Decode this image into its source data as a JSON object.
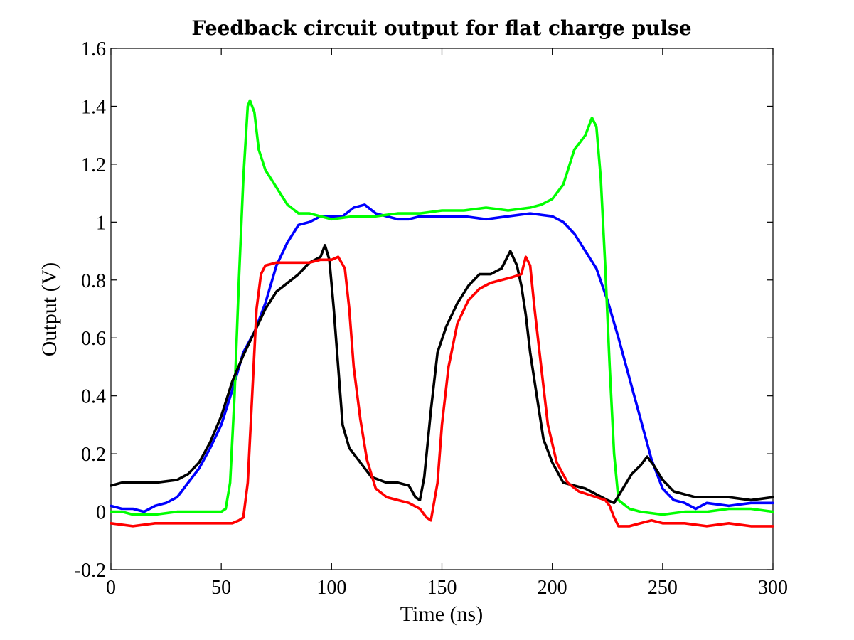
{
  "chart_data": {
    "type": "line",
    "title": "Feedback circuit output for flat charge pulse",
    "xlabel": "Time (ns)",
    "ylabel": "Output (V)",
    "xlim": [
      0,
      300
    ],
    "ylim": [
      -0.2,
      1.6
    ],
    "xticks": [
      0,
      50,
      100,
      150,
      200,
      250,
      300
    ],
    "yticks": [
      -0.2,
      0,
      0.2,
      0.4,
      0.6,
      0.8,
      1,
      1.2,
      1.4,
      1.6
    ],
    "xtick_labels": [
      "0",
      "50",
      "100",
      "150",
      "200",
      "250",
      "300"
    ],
    "ytick_labels": [
      "-0.2",
      "0",
      "0.2",
      "0.4",
      "0.6",
      "0.8",
      "1",
      "1.2",
      "1.4",
      "1.6"
    ],
    "grid": false,
    "legend": "none",
    "series": [
      {
        "color": "#0000ff",
        "points": [
          [
            0,
            0.02
          ],
          [
            5,
            0.01
          ],
          [
            10,
            0.01
          ],
          [
            15,
            0.0
          ],
          [
            20,
            0.02
          ],
          [
            25,
            0.03
          ],
          [
            30,
            0.05
          ],
          [
            35,
            0.1
          ],
          [
            40,
            0.15
          ],
          [
            45,
            0.22
          ],
          [
            50,
            0.3
          ],
          [
            55,
            0.42
          ],
          [
            60,
            0.55
          ],
          [
            65,
            0.62
          ],
          [
            70,
            0.72
          ],
          [
            75,
            0.85
          ],
          [
            80,
            0.93
          ],
          [
            85,
            0.99
          ],
          [
            90,
            1.0
          ],
          [
            95,
            1.02
          ],
          [
            100,
            1.02
          ],
          [
            105,
            1.02
          ],
          [
            110,
            1.05
          ],
          [
            115,
            1.06
          ],
          [
            120,
            1.03
          ],
          [
            125,
            1.02
          ],
          [
            130,
            1.01
          ],
          [
            135,
            1.01
          ],
          [
            140,
            1.02
          ],
          [
            150,
            1.02
          ],
          [
            160,
            1.02
          ],
          [
            170,
            1.01
          ],
          [
            180,
            1.02
          ],
          [
            190,
            1.03
          ],
          [
            200,
            1.02
          ],
          [
            205,
            1.0
          ],
          [
            210,
            0.96
          ],
          [
            215,
            0.9
          ],
          [
            220,
            0.84
          ],
          [
            225,
            0.73
          ],
          [
            230,
            0.6
          ],
          [
            235,
            0.46
          ],
          [
            240,
            0.32
          ],
          [
            245,
            0.18
          ],
          [
            250,
            0.08
          ],
          [
            255,
            0.04
          ],
          [
            260,
            0.03
          ],
          [
            265,
            0.01
          ],
          [
            270,
            0.03
          ],
          [
            280,
            0.02
          ],
          [
            290,
            0.03
          ],
          [
            300,
            0.03
          ]
        ]
      },
      {
        "color": "#00ff00",
        "points": [
          [
            0,
            0.0
          ],
          [
            5,
            0.0
          ],
          [
            10,
            -0.01
          ],
          [
            20,
            -0.01
          ],
          [
            30,
            0.0
          ],
          [
            40,
            0.0
          ],
          [
            50,
            0.0
          ],
          [
            52,
            0.01
          ],
          [
            54,
            0.1
          ],
          [
            56,
            0.4
          ],
          [
            58,
            0.8
          ],
          [
            60,
            1.15
          ],
          [
            62,
            1.4
          ],
          [
            63,
            1.42
          ],
          [
            65,
            1.38
          ],
          [
            67,
            1.25
          ],
          [
            70,
            1.18
          ],
          [
            75,
            1.12
          ],
          [
            80,
            1.06
          ],
          [
            85,
            1.03
          ],
          [
            90,
            1.03
          ],
          [
            95,
            1.02
          ],
          [
            100,
            1.01
          ],
          [
            110,
            1.02
          ],
          [
            120,
            1.02
          ],
          [
            130,
            1.03
          ],
          [
            140,
            1.03
          ],
          [
            150,
            1.04
          ],
          [
            160,
            1.04
          ],
          [
            170,
            1.05
          ],
          [
            180,
            1.04
          ],
          [
            190,
            1.05
          ],
          [
            195,
            1.06
          ],
          [
            200,
            1.08
          ],
          [
            205,
            1.13
          ],
          [
            210,
            1.25
          ],
          [
            215,
            1.3
          ],
          [
            218,
            1.36
          ],
          [
            220,
            1.33
          ],
          [
            222,
            1.15
          ],
          [
            224,
            0.85
          ],
          [
            226,
            0.5
          ],
          [
            228,
            0.2
          ],
          [
            230,
            0.04
          ],
          [
            235,
            0.01
          ],
          [
            240,
            0.0
          ],
          [
            250,
            -0.01
          ],
          [
            260,
            0.0
          ],
          [
            270,
            0.0
          ],
          [
            280,
            0.01
          ],
          [
            290,
            0.01
          ],
          [
            300,
            0.0
          ]
        ]
      },
      {
        "color": "#000000",
        "points": [
          [
            0,
            0.09
          ],
          [
            5,
            0.1
          ],
          [
            10,
            0.1
          ],
          [
            20,
            0.1
          ],
          [
            30,
            0.11
          ],
          [
            35,
            0.13
          ],
          [
            40,
            0.17
          ],
          [
            45,
            0.24
          ],
          [
            50,
            0.33
          ],
          [
            55,
            0.45
          ],
          [
            60,
            0.54
          ],
          [
            65,
            0.62
          ],
          [
            70,
            0.7
          ],
          [
            75,
            0.76
          ],
          [
            80,
            0.79
          ],
          [
            85,
            0.82
          ],
          [
            90,
            0.86
          ],
          [
            95,
            0.88
          ],
          [
            97,
            0.92
          ],
          [
            99,
            0.87
          ],
          [
            101,
            0.7
          ],
          [
            103,
            0.5
          ],
          [
            105,
            0.3
          ],
          [
            108,
            0.22
          ],
          [
            112,
            0.18
          ],
          [
            118,
            0.12
          ],
          [
            125,
            0.1
          ],
          [
            130,
            0.1
          ],
          [
            135,
            0.09
          ],
          [
            138,
            0.05
          ],
          [
            140,
            0.04
          ],
          [
            142,
            0.12
          ],
          [
            145,
            0.35
          ],
          [
            148,
            0.55
          ],
          [
            152,
            0.64
          ],
          [
            157,
            0.72
          ],
          [
            162,
            0.78
          ],
          [
            167,
            0.82
          ],
          [
            172,
            0.82
          ],
          [
            177,
            0.84
          ],
          [
            181,
            0.9
          ],
          [
            184,
            0.85
          ],
          [
            186,
            0.78
          ],
          [
            188,
            0.68
          ],
          [
            190,
            0.55
          ],
          [
            193,
            0.4
          ],
          [
            196,
            0.25
          ],
          [
            200,
            0.17
          ],
          [
            205,
            0.1
          ],
          [
            210,
            0.09
          ],
          [
            215,
            0.08
          ],
          [
            220,
            0.06
          ],
          [
            225,
            0.04
          ],
          [
            228,
            0.03
          ],
          [
            232,
            0.08
          ],
          [
            236,
            0.13
          ],
          [
            240,
            0.16
          ],
          [
            243,
            0.19
          ],
          [
            246,
            0.16
          ],
          [
            250,
            0.11
          ],
          [
            255,
            0.07
          ],
          [
            260,
            0.06
          ],
          [
            265,
            0.05
          ],
          [
            270,
            0.05
          ],
          [
            280,
            0.05
          ],
          [
            290,
            0.04
          ],
          [
            300,
            0.05
          ]
        ]
      },
      {
        "color": "#ff0000",
        "points": [
          [
            0,
            -0.04
          ],
          [
            10,
            -0.05
          ],
          [
            20,
            -0.04
          ],
          [
            30,
            -0.04
          ],
          [
            40,
            -0.04
          ],
          [
            50,
            -0.04
          ],
          [
            55,
            -0.04
          ],
          [
            58,
            -0.03
          ],
          [
            60,
            -0.02
          ],
          [
            62,
            0.1
          ],
          [
            64,
            0.4
          ],
          [
            66,
            0.7
          ],
          [
            68,
            0.82
          ],
          [
            70,
            0.85
          ],
          [
            75,
            0.86
          ],
          [
            80,
            0.86
          ],
          [
            85,
            0.86
          ],
          [
            90,
            0.86
          ],
          [
            95,
            0.87
          ],
          [
            100,
            0.87
          ],
          [
            103,
            0.88
          ],
          [
            106,
            0.84
          ],
          [
            108,
            0.7
          ],
          [
            110,
            0.5
          ],
          [
            113,
            0.32
          ],
          [
            116,
            0.18
          ],
          [
            120,
            0.08
          ],
          [
            125,
            0.05
          ],
          [
            130,
            0.04
          ],
          [
            135,
            0.03
          ],
          [
            140,
            0.01
          ],
          [
            143,
            -0.02
          ],
          [
            145,
            -0.03
          ],
          [
            148,
            0.1
          ],
          [
            150,
            0.3
          ],
          [
            153,
            0.5
          ],
          [
            157,
            0.65
          ],
          [
            162,
            0.73
          ],
          [
            167,
            0.77
          ],
          [
            172,
            0.79
          ],
          [
            177,
            0.8
          ],
          [
            182,
            0.81
          ],
          [
            186,
            0.82
          ],
          [
            188,
            0.88
          ],
          [
            190,
            0.85
          ],
          [
            192,
            0.7
          ],
          [
            195,
            0.5
          ],
          [
            198,
            0.3
          ],
          [
            202,
            0.17
          ],
          [
            207,
            0.1
          ],
          [
            212,
            0.07
          ],
          [
            216,
            0.06
          ],
          [
            220,
            0.05
          ],
          [
            224,
            0.04
          ],
          [
            226,
            0.02
          ],
          [
            228,
            -0.02
          ],
          [
            230,
            -0.05
          ],
          [
            235,
            -0.05
          ],
          [
            240,
            -0.04
          ],
          [
            245,
            -0.03
          ],
          [
            250,
            -0.04
          ],
          [
            255,
            -0.04
          ],
          [
            260,
            -0.04
          ],
          [
            270,
            -0.05
          ],
          [
            280,
            -0.04
          ],
          [
            290,
            -0.05
          ],
          [
            300,
            -0.05
          ]
        ]
      }
    ]
  }
}
